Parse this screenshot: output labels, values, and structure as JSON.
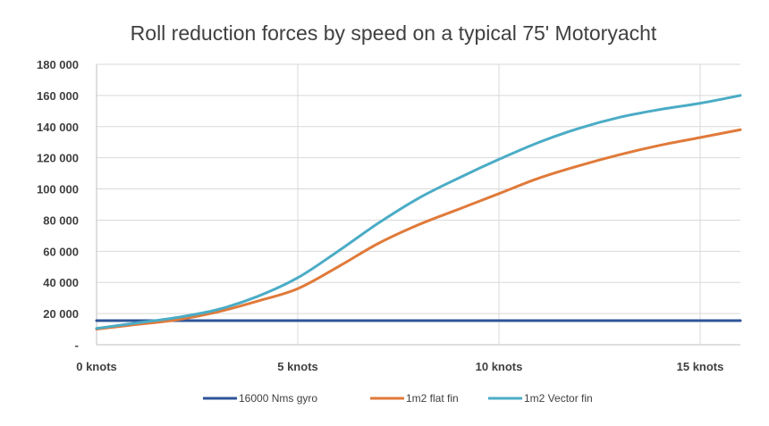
{
  "chart_data": {
    "type": "line",
    "title": "Roll reduction forces by speed on a typical 75' Motoryacht",
    "xlabel": "",
    "ylabel": "",
    "xlim": [
      0,
      16
    ],
    "ylim": [
      0,
      180000
    ],
    "x_ticks": [
      {
        "value": 0,
        "label": "0 knots"
      },
      {
        "value": 5,
        "label": "5 knots"
      },
      {
        "value": 10,
        "label": "10 knots"
      },
      {
        "value": 15,
        "label": "15 knots"
      }
    ],
    "y_ticks": [
      {
        "value": 0,
        "label": "-"
      },
      {
        "value": 20000,
        "label": "20 000"
      },
      {
        "value": 40000,
        "label": "40 000"
      },
      {
        "value": 60000,
        "label": "60 000"
      },
      {
        "value": 80000,
        "label": "80 000"
      },
      {
        "value": 100000,
        "label": "100 000"
      },
      {
        "value": 120000,
        "label": "120 000"
      },
      {
        "value": 140000,
        "label": "140 000"
      },
      {
        "value": 160000,
        "label": "160 000"
      },
      {
        "value": 180000,
        "label": "180 000"
      }
    ],
    "grid": {
      "vertical": true,
      "horizontal": true
    },
    "legend_position": "bottom",
    "series": [
      {
        "name": "16000 Nms gyro",
        "color": "#2e5597",
        "x": [
          0,
          16
        ],
        "y": [
          15500,
          15500
        ]
      },
      {
        "name": "1m2 flat fin",
        "color": "#e07a3a",
        "x": [
          0,
          1,
          2,
          3,
          4,
          5,
          6,
          7,
          8,
          9,
          10,
          11,
          12,
          13,
          14,
          15,
          16
        ],
        "y": [
          10000,
          13000,
          16000,
          21000,
          28000,
          36000,
          50000,
          65000,
          77000,
          87000,
          97000,
          107000,
          115000,
          122000,
          128000,
          133000,
          138000
        ]
      },
      {
        "name": "1m2 Vector fin",
        "color": "#4bacc6",
        "x": [
          0,
          1,
          2,
          3,
          4,
          5,
          6,
          7,
          8,
          9,
          10,
          11,
          12,
          13,
          14,
          15,
          16
        ],
        "y": [
          10500,
          14000,
          17500,
          22500,
          31000,
          43000,
          60000,
          78000,
          94000,
          107000,
          119000,
          130000,
          139000,
          146000,
          151000,
          155000,
          160000
        ]
      }
    ]
  }
}
